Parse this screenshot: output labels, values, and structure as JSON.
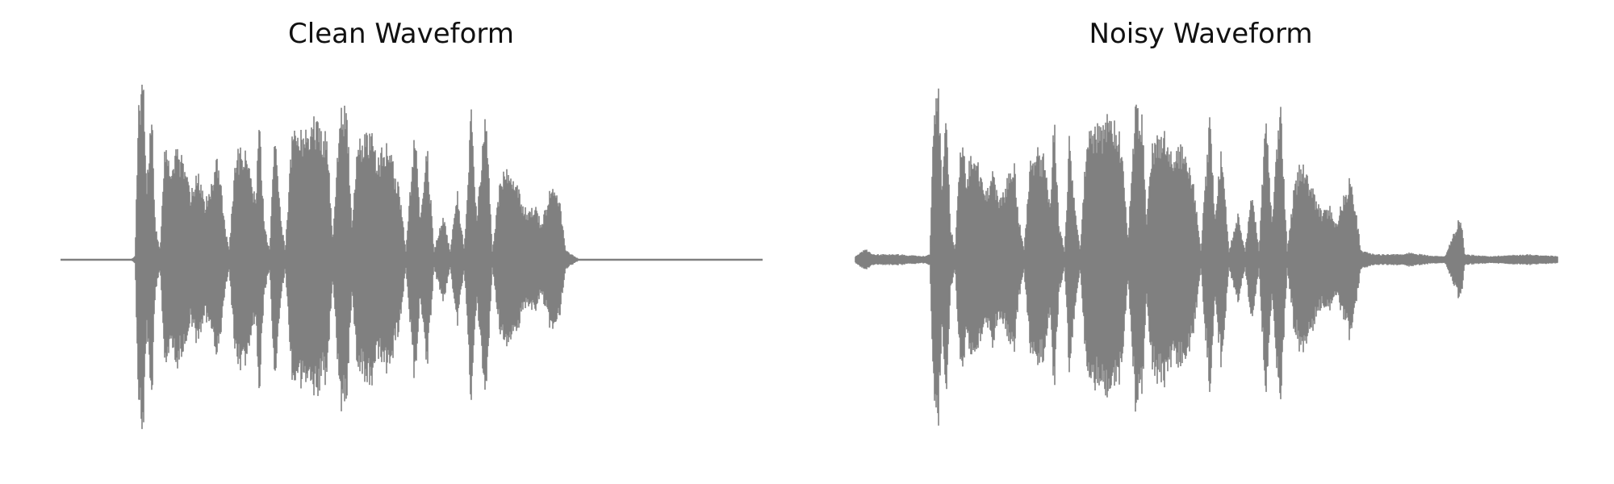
{
  "chart_data": [
    {
      "type": "line",
      "title": "Clean Waveform",
      "xlabel": "",
      "ylabel": "",
      "axes": "off",
      "grid": false,
      "ylim": [
        -1,
        1
      ],
      "line_color": "#808080",
      "envelope": [
        {
          "t": 0.0,
          "a": 0.0
        },
        {
          "t": 0.1,
          "a": 0.0
        },
        {
          "t": 0.106,
          "a": 0.02
        },
        {
          "t": 0.112,
          "a": 0.92
        },
        {
          "t": 0.118,
          "a": 0.98
        },
        {
          "t": 0.123,
          "a": 0.45
        },
        {
          "t": 0.13,
          "a": 0.85
        },
        {
          "t": 0.135,
          "a": 0.2
        },
        {
          "t": 0.142,
          "a": 0.05
        },
        {
          "t": 0.15,
          "a": 0.72
        },
        {
          "t": 0.158,
          "a": 0.45
        },
        {
          "t": 0.165,
          "a": 0.6
        },
        {
          "t": 0.175,
          "a": 0.55
        },
        {
          "t": 0.185,
          "a": 0.35
        },
        {
          "t": 0.195,
          "a": 0.5
        },
        {
          "t": 0.205,
          "a": 0.32
        },
        {
          "t": 0.215,
          "a": 0.42
        },
        {
          "t": 0.225,
          "a": 0.58
        },
        {
          "t": 0.232,
          "a": 0.25
        },
        {
          "t": 0.24,
          "a": 0.05
        },
        {
          "t": 0.25,
          "a": 0.58
        },
        {
          "t": 0.26,
          "a": 0.6
        },
        {
          "t": 0.27,
          "a": 0.55
        },
        {
          "t": 0.278,
          "a": 0.3
        },
        {
          "t": 0.283,
          "a": 0.8
        },
        {
          "t": 0.29,
          "a": 0.2
        },
        {
          "t": 0.298,
          "a": 0.05
        },
        {
          "t": 0.305,
          "a": 0.7
        },
        {
          "t": 0.312,
          "a": 0.3
        },
        {
          "t": 0.32,
          "a": 0.05
        },
        {
          "t": 0.33,
          "a": 0.7
        },
        {
          "t": 0.34,
          "a": 0.75
        },
        {
          "t": 0.35,
          "a": 0.7
        },
        {
          "t": 0.36,
          "a": 0.78
        },
        {
          "t": 0.37,
          "a": 0.75
        },
        {
          "t": 0.38,
          "a": 0.65
        },
        {
          "t": 0.388,
          "a": 0.1
        },
        {
          "t": 0.398,
          "a": 0.82
        },
        {
          "t": 0.408,
          "a": 0.82
        },
        {
          "t": 0.415,
          "a": 0.2
        },
        {
          "t": 0.422,
          "a": 0.65
        },
        {
          "t": 0.432,
          "a": 0.7
        },
        {
          "t": 0.442,
          "a": 0.7
        },
        {
          "t": 0.452,
          "a": 0.55
        },
        {
          "t": 0.462,
          "a": 0.65
        },
        {
          "t": 0.472,
          "a": 0.55
        },
        {
          "t": 0.482,
          "a": 0.4
        },
        {
          "t": 0.492,
          "a": 0.05
        },
        {
          "t": 0.505,
          "a": 0.8
        },
        {
          "t": 0.512,
          "a": 0.25
        },
        {
          "t": 0.522,
          "a": 0.65
        },
        {
          "t": 0.532,
          "a": 0.05
        },
        {
          "t": 0.545,
          "a": 0.25
        },
        {
          "t": 0.555,
          "a": 0.05
        },
        {
          "t": 0.565,
          "a": 0.38
        },
        {
          "t": 0.575,
          "a": 0.05
        },
        {
          "t": 0.585,
          "a": 0.88
        },
        {
          "t": 0.593,
          "a": 0.2
        },
        {
          "t": 0.605,
          "a": 0.88
        },
        {
          "t": 0.615,
          "a": 0.05
        },
        {
          "t": 0.625,
          "a": 0.4
        },
        {
          "t": 0.635,
          "a": 0.55
        },
        {
          "t": 0.645,
          "a": 0.45
        },
        {
          "t": 0.655,
          "a": 0.35
        },
        {
          "t": 0.665,
          "a": 0.25
        },
        {
          "t": 0.675,
          "a": 0.3
        },
        {
          "t": 0.685,
          "a": 0.2
        },
        {
          "t": 0.695,
          "a": 0.35
        },
        {
          "t": 0.705,
          "a": 0.45
        },
        {
          "t": 0.712,
          "a": 0.3
        },
        {
          "t": 0.72,
          "a": 0.05
        },
        {
          "t": 0.74,
          "a": 0.0
        },
        {
          "t": 1.0,
          "a": 0.0
        }
      ]
    },
    {
      "type": "line",
      "title": "Noisy Waveform",
      "xlabel": "",
      "ylabel": "",
      "axes": "off",
      "grid": false,
      "ylim": [
        -1,
        1
      ],
      "line_color": "#808080",
      "noise_floor": 0.02,
      "envelope": [
        {
          "t": 0.0,
          "a": 0.02
        },
        {
          "t": 0.015,
          "a": 0.06
        },
        {
          "t": 0.025,
          "a": 0.03
        },
        {
          "t": 0.06,
          "a": 0.03
        },
        {
          "t": 0.1,
          "a": 0.02
        },
        {
          "t": 0.106,
          "a": 0.03
        },
        {
          "t": 0.112,
          "a": 0.92
        },
        {
          "t": 0.118,
          "a": 0.98
        },
        {
          "t": 0.123,
          "a": 0.45
        },
        {
          "t": 0.13,
          "a": 0.85
        },
        {
          "t": 0.135,
          "a": 0.2
        },
        {
          "t": 0.142,
          "a": 0.05
        },
        {
          "t": 0.15,
          "a": 0.72
        },
        {
          "t": 0.158,
          "a": 0.45
        },
        {
          "t": 0.165,
          "a": 0.6
        },
        {
          "t": 0.175,
          "a": 0.55
        },
        {
          "t": 0.185,
          "a": 0.35
        },
        {
          "t": 0.195,
          "a": 0.5
        },
        {
          "t": 0.205,
          "a": 0.32
        },
        {
          "t": 0.215,
          "a": 0.42
        },
        {
          "t": 0.225,
          "a": 0.58
        },
        {
          "t": 0.232,
          "a": 0.25
        },
        {
          "t": 0.24,
          "a": 0.05
        },
        {
          "t": 0.25,
          "a": 0.58
        },
        {
          "t": 0.26,
          "a": 0.6
        },
        {
          "t": 0.27,
          "a": 0.55
        },
        {
          "t": 0.278,
          "a": 0.3
        },
        {
          "t": 0.283,
          "a": 0.8
        },
        {
          "t": 0.29,
          "a": 0.2
        },
        {
          "t": 0.298,
          "a": 0.05
        },
        {
          "t": 0.305,
          "a": 0.7
        },
        {
          "t": 0.312,
          "a": 0.3
        },
        {
          "t": 0.32,
          "a": 0.05
        },
        {
          "t": 0.33,
          "a": 0.7
        },
        {
          "t": 0.34,
          "a": 0.75
        },
        {
          "t": 0.35,
          "a": 0.7
        },
        {
          "t": 0.36,
          "a": 0.78
        },
        {
          "t": 0.37,
          "a": 0.75
        },
        {
          "t": 0.38,
          "a": 0.65
        },
        {
          "t": 0.388,
          "a": 0.1
        },
        {
          "t": 0.398,
          "a": 0.82
        },
        {
          "t": 0.408,
          "a": 0.82
        },
        {
          "t": 0.415,
          "a": 0.2
        },
        {
          "t": 0.422,
          "a": 0.65
        },
        {
          "t": 0.432,
          "a": 0.7
        },
        {
          "t": 0.442,
          "a": 0.7
        },
        {
          "t": 0.452,
          "a": 0.55
        },
        {
          "t": 0.462,
          "a": 0.65
        },
        {
          "t": 0.472,
          "a": 0.55
        },
        {
          "t": 0.482,
          "a": 0.4
        },
        {
          "t": 0.492,
          "a": 0.05
        },
        {
          "t": 0.505,
          "a": 0.8
        },
        {
          "t": 0.512,
          "a": 0.25
        },
        {
          "t": 0.522,
          "a": 0.65
        },
        {
          "t": 0.532,
          "a": 0.05
        },
        {
          "t": 0.545,
          "a": 0.25
        },
        {
          "t": 0.555,
          "a": 0.05
        },
        {
          "t": 0.565,
          "a": 0.38
        },
        {
          "t": 0.575,
          "a": 0.05
        },
        {
          "t": 0.585,
          "a": 0.88
        },
        {
          "t": 0.593,
          "a": 0.2
        },
        {
          "t": 0.605,
          "a": 0.88
        },
        {
          "t": 0.615,
          "a": 0.05
        },
        {
          "t": 0.625,
          "a": 0.4
        },
        {
          "t": 0.635,
          "a": 0.55
        },
        {
          "t": 0.645,
          "a": 0.45
        },
        {
          "t": 0.655,
          "a": 0.35
        },
        {
          "t": 0.665,
          "a": 0.25
        },
        {
          "t": 0.675,
          "a": 0.3
        },
        {
          "t": 0.685,
          "a": 0.2
        },
        {
          "t": 0.695,
          "a": 0.35
        },
        {
          "t": 0.705,
          "a": 0.45
        },
        {
          "t": 0.712,
          "a": 0.3
        },
        {
          "t": 0.72,
          "a": 0.05
        },
        {
          "t": 0.74,
          "a": 0.03
        },
        {
          "t": 0.78,
          "a": 0.03
        },
        {
          "t": 0.79,
          "a": 0.04
        },
        {
          "t": 0.805,
          "a": 0.03
        },
        {
          "t": 0.83,
          "a": 0.02
        },
        {
          "t": 0.84,
          "a": 0.02
        },
        {
          "t": 0.862,
          "a": 0.25
        },
        {
          "t": 0.868,
          "a": 0.03
        },
        {
          "t": 0.9,
          "a": 0.02
        },
        {
          "t": 0.96,
          "a": 0.03
        },
        {
          "t": 1.0,
          "a": 0.02
        }
      ]
    }
  ]
}
